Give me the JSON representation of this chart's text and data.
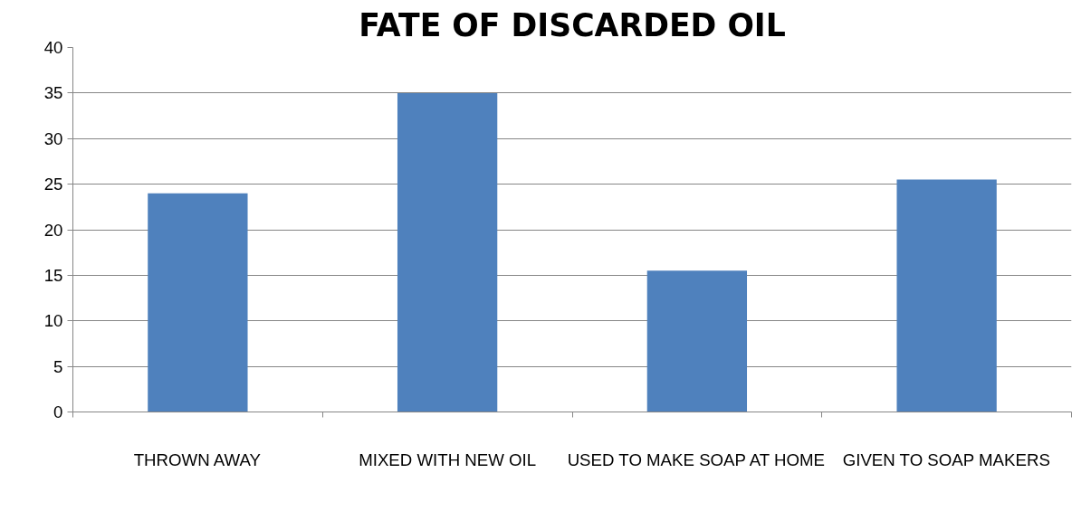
{
  "chart_data": {
    "type": "bar",
    "title": "FATE OF DISCARDED OIL",
    "categories": [
      "THROWN AWAY",
      "MIXED WITH NEW OIL",
      "USED TO MAKE SOAP AT HOME",
      "GIVEN TO SOAP MAKERS"
    ],
    "values": [
      24,
      35,
      15.5,
      25.5
    ],
    "color": "#4f81bd",
    "ylim": [
      0,
      40
    ],
    "yticks": [
      0,
      5,
      10,
      15,
      20,
      25,
      30,
      35,
      40
    ],
    "grid": "y"
  }
}
